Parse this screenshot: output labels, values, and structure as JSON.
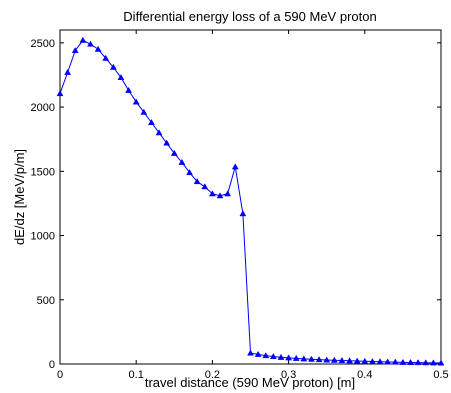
{
  "chart_data": {
    "type": "line",
    "title": "Differential energy loss of a 590 MeV proton",
    "xlabel": "travel distance (590 MeV proton) [m]",
    "ylabel": "dE/dz [MeV/p/m]",
    "xlim": [
      0,
      0.5
    ],
    "ylim": [
      0,
      2600
    ],
    "x_ticks": [
      0,
      0.1,
      0.2,
      0.3,
      0.4,
      0.5
    ],
    "x_tick_labels": [
      "0",
      "0.1",
      "0.2",
      "0.3",
      "0.4",
      "0.5"
    ],
    "y_ticks": [
      0,
      500,
      1000,
      1500,
      2000,
      2500
    ],
    "y_tick_labels": [
      "0",
      "500",
      "1000",
      "1500",
      "2000",
      "2500"
    ],
    "grid": false,
    "marker": "triangle",
    "line_color": "#0000ff",
    "series": [
      {
        "x": [
          0,
          0.01,
          0.02,
          0.03,
          0.04,
          0.05,
          0.06,
          0.07,
          0.08,
          0.09,
          0.1,
          0.11,
          0.12,
          0.13,
          0.14,
          0.15,
          0.16,
          0.17,
          0.18,
          0.19,
          0.2,
          0.21,
          0.22,
          0.23,
          0.24,
          0.25,
          0.26,
          0.27,
          0.28,
          0.29,
          0.3,
          0.31,
          0.32,
          0.33,
          0.34,
          0.35,
          0.36,
          0.37,
          0.38,
          0.39,
          0.4,
          0.41,
          0.42,
          0.43,
          0.44,
          0.45,
          0.46,
          0.47,
          0.48,
          0.49,
          0.5
        ],
        "y": [
          2105,
          2270,
          2440,
          2520,
          2490,
          2450,
          2380,
          2310,
          2230,
          2130,
          2040,
          1960,
          1880,
          1800,
          1720,
          1640,
          1570,
          1490,
          1420,
          1380,
          1325,
          1310,
          1325,
          1535,
          1170,
          85,
          75,
          65,
          58,
          52,
          48,
          44,
          40,
          37,
          34,
          31,
          29,
          27,
          25,
          23,
          21,
          19,
          18,
          16,
          15,
          13,
          12,
          11,
          10,
          9,
          8
        ]
      }
    ]
  }
}
